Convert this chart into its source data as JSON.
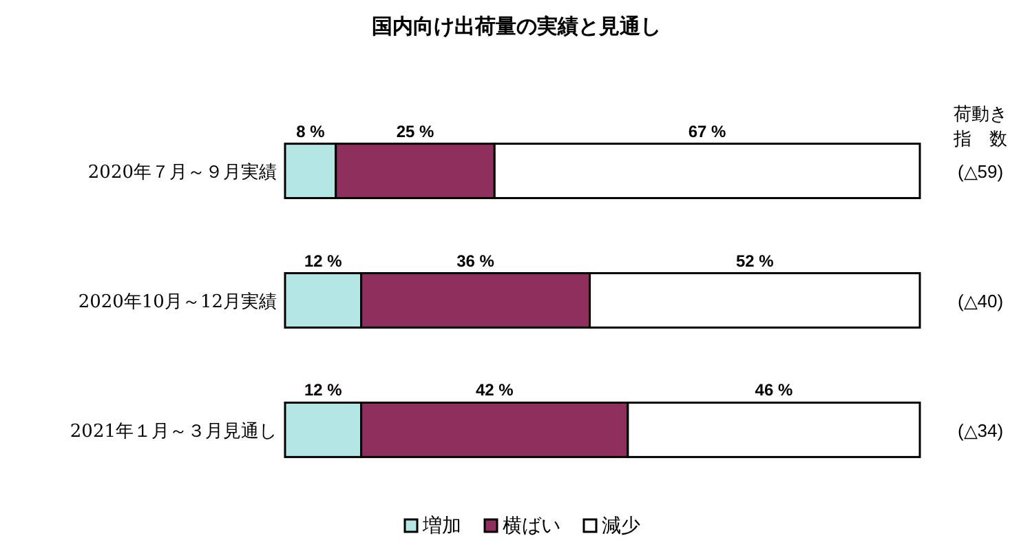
{
  "chart_data": {
    "type": "bar",
    "orientation": "horizontal",
    "stacked": true,
    "title": "国内向け出荷量の実績と見通し",
    "categories": [
      "2020年７月～９月実績",
      "2020年10月～12月実績",
      "2021年１月～３月見通し"
    ],
    "series": [
      {
        "name": "増加",
        "color": "#b4e6e6",
        "values": [
          8,
          12,
          12
        ],
        "value_labels": [
          "8 %",
          "12 %",
          "12 %"
        ]
      },
      {
        "name": "横ばい",
        "color": "#8e2f5e",
        "values": [
          25,
          36,
          42
        ],
        "value_labels": [
          "25 %",
          "36 %",
          "42 %"
        ]
      },
      {
        "name": "減少",
        "color": "#ffffff",
        "values": [
          67,
          52,
          46
        ],
        "value_labels": [
          "67 %",
          "52 %",
          "46 %"
        ]
      }
    ],
    "xlim": [
      0,
      100
    ],
    "tick_labels": "y",
    "annotations": [
      "荷動き",
      "指　数",
      "(△59)",
      "(△40)",
      "(△34)"
    ],
    "legend": "bottom"
  }
}
